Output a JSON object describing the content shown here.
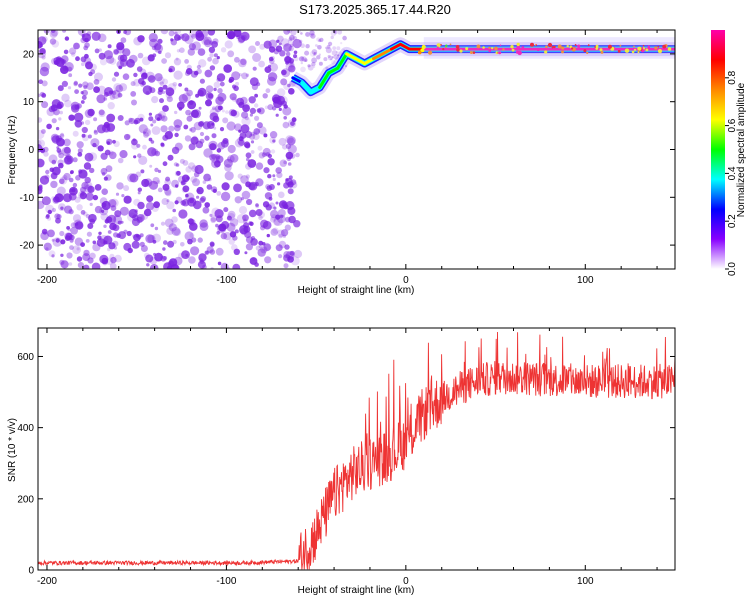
{
  "title": "S173.2025.365.17.44.R20",
  "colors": {
    "snr_line": "#ee3333",
    "noise_speckle": "#7a22e0",
    "colorbar": [
      "#ff00aa",
      "#ff0000",
      "#ff8800",
      "#ffff00",
      "#00ff00",
      "#00ffff",
      "#0000ff",
      "#8800ff",
      "#ffffff"
    ]
  },
  "chart_data": [
    {
      "type": "heatmap",
      "xlabel": "Height of straight line (km)",
      "ylabel": "Frequency (Hz)",
      "xlim": [
        -205,
        150
      ],
      "ylim": [
        -25,
        25
      ],
      "x_ticks": [
        -200,
        -100,
        0,
        100
      ],
      "y_ticks": [
        -20,
        -10,
        0,
        10,
        20
      ],
      "colorbar": {
        "label": "Normalized spectral amplitude",
        "range": [
          0,
          1
        ],
        "ticks": [
          "0.0",
          "0.2",
          "0.4",
          "0.6",
          "0.8"
        ]
      },
      "noise_region_x": [
        -205,
        -60
      ],
      "ridge": [
        {
          "x": -63,
          "y": 15,
          "amp": 0.25
        },
        {
          "x": -58,
          "y": 14,
          "amp": 0.3
        },
        {
          "x": -53,
          "y": 12,
          "amp": 0.4
        },
        {
          "x": -48,
          "y": 13,
          "amp": 0.45
        },
        {
          "x": -43,
          "y": 16,
          "amp": 0.5
        },
        {
          "x": -38,
          "y": 17,
          "amp": 0.55
        },
        {
          "x": -33,
          "y": 20,
          "amp": 0.55
        },
        {
          "x": -28,
          "y": 19,
          "amp": 0.6
        },
        {
          "x": -23,
          "y": 18,
          "amp": 0.65
        },
        {
          "x": -18,
          "y": 19,
          "amp": 0.7
        },
        {
          "x": -13,
          "y": 20,
          "amp": 0.75
        },
        {
          "x": -8,
          "y": 21,
          "amp": 0.8
        },
        {
          "x": -3,
          "y": 22,
          "amp": 0.85
        },
        {
          "x": 2,
          "y": 21,
          "amp": 0.9
        },
        {
          "x": 10,
          "y": 21,
          "amp": 0.95
        },
        {
          "x": 30,
          "y": 21,
          "amp": 0.95
        },
        {
          "x": 60,
          "y": 21,
          "amp": 0.95
        },
        {
          "x": 90,
          "y": 21,
          "amp": 0.95
        },
        {
          "x": 120,
          "y": 21,
          "amp": 0.95
        },
        {
          "x": 150,
          "y": 21,
          "amp": 0.95
        }
      ]
    },
    {
      "type": "line",
      "xlabel": "Height of straight line (km)",
      "ylabel": "SNR (10 * v/v)",
      "xlim": [
        -205,
        150
      ],
      "ylim": [
        0,
        680
      ],
      "x_ticks": [
        -200,
        -100,
        0,
        100
      ],
      "y_ticks": [
        0,
        200,
        400,
        600
      ],
      "series": [
        {
          "x": [
            -205,
            -180,
            -150,
            -120,
            -90,
            -60,
            -50,
            -40,
            -30,
            -20,
            -10,
            0,
            10,
            20,
            30,
            40,
            50,
            60,
            80,
            100,
            120,
            150
          ],
          "values": [
            20,
            20,
            20,
            20,
            20,
            25,
            100,
            210,
            270,
            300,
            320,
            360,
            440,
            480,
            510,
            530,
            540,
            540,
            535,
            530,
            530,
            530
          ]
        }
      ]
    }
  ]
}
